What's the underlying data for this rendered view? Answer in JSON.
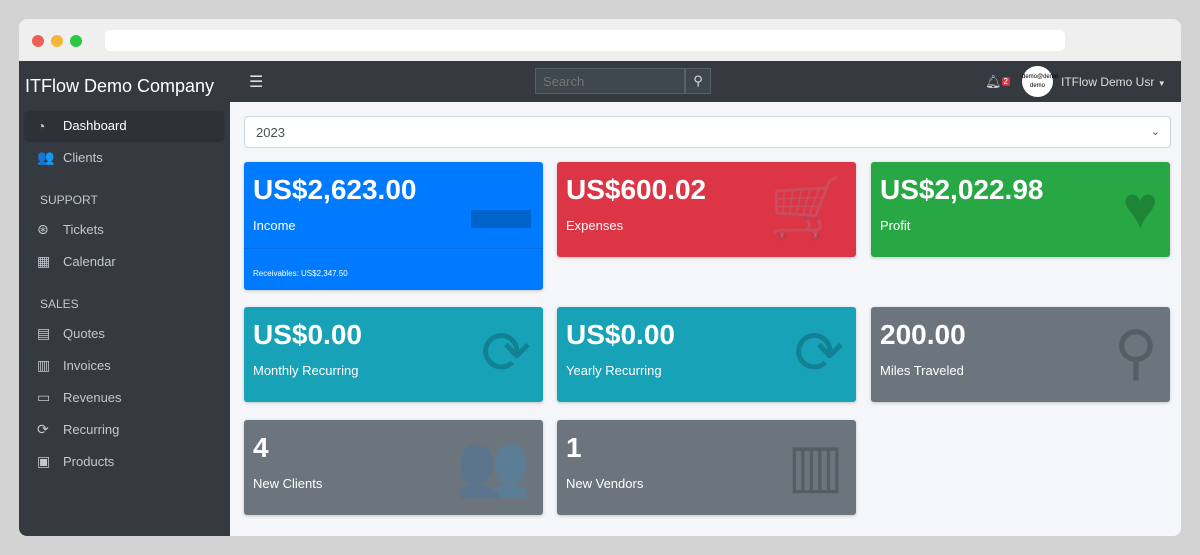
{
  "window": {
    "dots": [
      "#ed5f57",
      "#f6b63a",
      "#28c941"
    ]
  },
  "sidebar": {
    "brand": "ITFlow Demo Company",
    "items": [
      {
        "label": "Dashboard",
        "icon": "tachometer-icon",
        "glyph": "◔",
        "active": true
      },
      {
        "label": "Clients",
        "icon": "users-icon",
        "glyph": "👥"
      }
    ],
    "support": {
      "header": "SUPPORT",
      "items": [
        {
          "label": "Tickets",
          "icon": "life-ring-icon",
          "glyph": "⊛"
        },
        {
          "label": "Calendar",
          "icon": "calendar-icon",
          "glyph": "▦"
        }
      ]
    },
    "sales": {
      "header": "SALES",
      "items": [
        {
          "label": "Quotes",
          "icon": "file-icon",
          "glyph": "▤"
        },
        {
          "label": "Invoices",
          "icon": "invoice-icon",
          "glyph": "▥"
        },
        {
          "label": "Revenues",
          "icon": "credit-card-icon",
          "glyph": "▭"
        },
        {
          "label": "Recurring",
          "icon": "sync-icon",
          "glyph": "⟳"
        },
        {
          "label": "Products",
          "icon": "box-icon",
          "glyph": "▣"
        }
      ]
    }
  },
  "topbar": {
    "search_placeholder": "Search",
    "notifications": "2",
    "avatar_text": "demo@demo demo",
    "user": "ITFlow Demo Usr"
  },
  "main": {
    "year": "2023",
    "cards": [
      {
        "value": "US$2,623.00",
        "label": "Income",
        "footer": "Receivables: US$2,347.50",
        "color": "#007bff",
        "icon": "credit-card-icon",
        "glyph": "▬"
      },
      {
        "value": "US$600.02",
        "label": "Expenses",
        "color": "#dc3545",
        "icon": "shopping-cart-icon",
        "glyph": "🛒"
      },
      {
        "value": "US$2,022.98",
        "label": "Profit",
        "color": "#28a745",
        "icon": "heart-icon",
        "glyph": "♥"
      },
      {
        "value": "US$0.00",
        "label": "Monthly Recurring",
        "color": "#17a2b8",
        "icon": "sync-icon",
        "glyph": "⟳"
      },
      {
        "value": "US$0.00",
        "label": "Yearly Recurring",
        "color": "#17a2b8",
        "icon": "sync-icon",
        "glyph": "⟳"
      },
      {
        "value": "200.00",
        "label": "Miles Traveled",
        "color": "#6c757d",
        "icon": "route-icon",
        "glyph": "⚲"
      },
      {
        "value": "4",
        "label": "New Clients",
        "color": "#6c757d",
        "icon": "users-icon",
        "glyph": "👥"
      },
      {
        "value": "1",
        "label": "New Vendors",
        "color": "#6c757d",
        "icon": "building-icon",
        "glyph": "▥"
      }
    ]
  }
}
